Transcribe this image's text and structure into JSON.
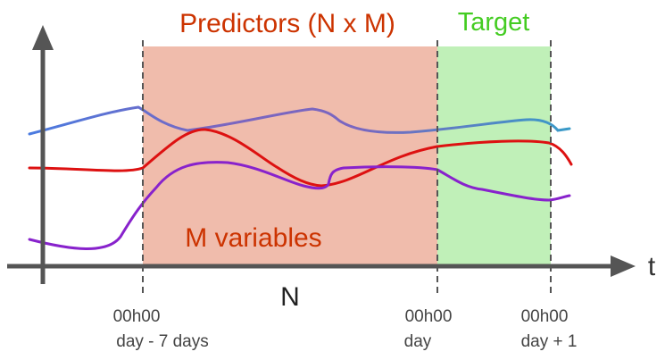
{
  "regions": {
    "predictors": {
      "title": "Predictors (N x M)",
      "color": "#f0bcac",
      "title_color": "#cc3300"
    },
    "target": {
      "title": "Target",
      "color": "#c0f0b8",
      "title_color": "#44cc22"
    }
  },
  "labels": {
    "m_variables": "M variables",
    "n": "N",
    "t_axis": "t"
  },
  "ticks": [
    {
      "line1": "00h00",
      "line2": "day - 7 days"
    },
    {
      "line1": "00h00",
      "line2": "day"
    },
    {
      "line1": "00h00",
      "line2": "day + 1"
    }
  ],
  "series_colors": {
    "blue": "#4a7be0",
    "red": "#dd1111",
    "purple": "#8822cc"
  },
  "axis_color": "#555555"
}
